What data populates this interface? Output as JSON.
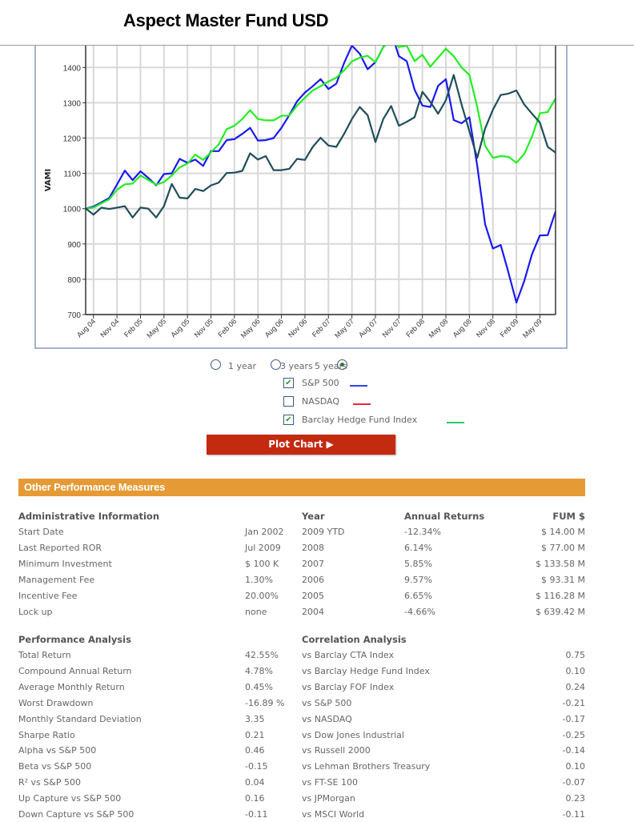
{
  "header": {
    "title": "Aspect Master Fund USD"
  },
  "chart_data": {
    "type": "line",
    "title": "Aspect Master Fund USD",
    "ylabel": "VAMI",
    "xlabel": "",
    "ylim": [
      700,
      1475
    ],
    "yticks": [
      700,
      800,
      900,
      1000,
      1100,
      1200,
      1300,
      1400
    ],
    "xtick_labels": [
      "Aug 04",
      "Nov 04",
      "Feb 05",
      "May 05",
      "Aug 05",
      "Nov 05",
      "Feb 06",
      "May 06",
      "Aug 06",
      "Nov 06",
      "Feb 07",
      "May 07",
      "Aug 07",
      "Nov 07",
      "Feb 08",
      "May 08",
      "Aug 08",
      "Nov 08",
      "Feb 09",
      "May 09"
    ],
    "x_start": "Jul 04",
    "x_end": "Jul 09",
    "grid": true,
    "series": [
      {
        "name": "Aspect Master Fund USD",
        "color": "#1f4e5a",
        "values": [
          1001,
          983,
          1003,
          999,
          1003,
          1007,
          975,
          1003,
          1000,
          975,
          1007,
          1070,
          1031,
          1029,
          1056,
          1050,
          1066,
          1074,
          1101,
          1102,
          1107,
          1157,
          1139,
          1149,
          1109,
          1109,
          1113,
          1141,
          1138,
          1175,
          1201,
          1179,
          1175,
          1212,
          1254,
          1288,
          1265,
          1189,
          1254,
          1291,
          1235,
          1246,
          1259,
          1331,
          1303,
          1269,
          1307,
          1379,
          1295,
          1219,
          1144,
          1227,
          1280,
          1322,
          1326,
          1335,
          1295,
          1269,
          1244,
          1175,
          1159
        ]
      },
      {
        "name": "S&P 500",
        "color": "#1a1aee",
        "values": [
          1000,
          1006,
          1018,
          1030,
          1068,
          1108,
          1081,
          1106,
          1087,
          1066,
          1098,
          1100,
          1141,
          1130,
          1139,
          1121,
          1163,
          1163,
          1194,
          1197,
          1212,
          1229,
          1193,
          1194,
          1200,
          1229,
          1265,
          1304,
          1329,
          1347,
          1367,
          1339,
          1354,
          1413,
          1462,
          1439,
          1395,
          1415,
          1458,
          1500,
          1432,
          1418,
          1337,
          1292,
          1288,
          1348,
          1367,
          1251,
          1242,
          1259,
          1121,
          956,
          887,
          897,
          818,
          734,
          795,
          871,
          924,
          925,
          992
        ]
      },
      {
        "name": "Barclay Hedge Fund Index",
        "color": "#22ee22",
        "values": [
          1000,
          1003,
          1015,
          1026,
          1053,
          1069,
          1071,
          1094,
          1081,
          1068,
          1075,
          1094,
          1117,
          1128,
          1153,
          1138,
          1160,
          1182,
          1225,
          1235,
          1254,
          1279,
          1254,
          1250,
          1250,
          1263,
          1264,
          1292,
          1314,
          1335,
          1347,
          1360,
          1371,
          1392,
          1417,
          1428,
          1433,
          1415,
          1458,
          1474,
          1458,
          1462,
          1418,
          1436,
          1402,
          1428,
          1453,
          1432,
          1400,
          1379,
          1288,
          1178,
          1144,
          1149,
          1147,
          1130,
          1155,
          1204,
          1270,
          1274,
          1312
        ]
      }
    ]
  },
  "controls": {
    "periods": [
      {
        "label": "1 year",
        "selected": false
      },
      {
        "label": "3 years",
        "selected": false
      },
      {
        "label": "5 years",
        "selected": true
      }
    ],
    "benchmarks": [
      {
        "label": "S&P 500",
        "checked": true,
        "color": "#3344ee"
      },
      {
        "label": "NASDAQ",
        "checked": false,
        "color": "#ee2244"
      },
      {
        "label": "Barclay Hedge Fund Index",
        "checked": true,
        "color": "#22cc66"
      }
    ],
    "plot_button": "Plot Chart ▶"
  },
  "section_title": "Other Performance Measures",
  "admin": {
    "headers": [
      "Administrative Information",
      "Year",
      "Annual Returns",
      "FUM $"
    ],
    "rows": [
      [
        "Start Date",
        "Jan 2002",
        "2009 YTD",
        "-12.34%",
        "$ 14.00 M"
      ],
      [
        "Last Reported ROR",
        "Jul 2009",
        "2008",
        "6.14%",
        "$ 77.00 M"
      ],
      [
        "Minimum Investment",
        "$ 100 K",
        "2007",
        "5.85%",
        "$ 133.58 M"
      ],
      [
        "Management Fee",
        "1.30%",
        "2006",
        "9.57%",
        "$ 93.31 M"
      ],
      [
        "Incentive Fee",
        "20.00%",
        "2005",
        "6.65%",
        "$ 116.28 M"
      ],
      [
        "Lock up",
        "none",
        "2004",
        "-4.66%",
        "$ 639.42 M"
      ]
    ]
  },
  "analysis": {
    "headers": [
      "Performance Analysis",
      "Correlation Analysis"
    ],
    "rows": [
      [
        "Total Return",
        "42.55%",
        "vs Barclay CTA Index",
        "0.75"
      ],
      [
        "Compound Annual Return",
        "4.78%",
        "vs Barclay Hedge Fund Index",
        "0.10"
      ],
      [
        "Average Monthly Return",
        "0.45%",
        "vs Barclay FOF Index",
        "0.24"
      ],
      [
        "Worst Drawdown",
        "-16.89 %",
        "vs S&P 500",
        "-0.21"
      ],
      [
        "Monthly Standard Deviation",
        "3.35",
        "vs NASDAQ",
        "-0.17"
      ],
      [
        "Sharpe Ratio",
        "0.21",
        "vs Dow Jones Industrial",
        "-0.25"
      ],
      [
        "Alpha vs S&P 500",
        "0.46",
        "vs Russell 2000",
        "-0.14"
      ],
      [
        "Beta vs S&P 500",
        "-0.15",
        "vs Lehman Brothers Treasury",
        "0.10"
      ],
      [
        "R² vs S&P 500",
        "0.04",
        "vs FT-SE 100",
        "-0.07"
      ],
      [
        "Up Capture vs S&P 500",
        "0.16",
        "vs JPMorgan",
        "0.23"
      ],
      [
        "Down Capture vs S&P 500",
        "-0.11",
        "vs MSCI World",
        "-0.11"
      ]
    ]
  }
}
